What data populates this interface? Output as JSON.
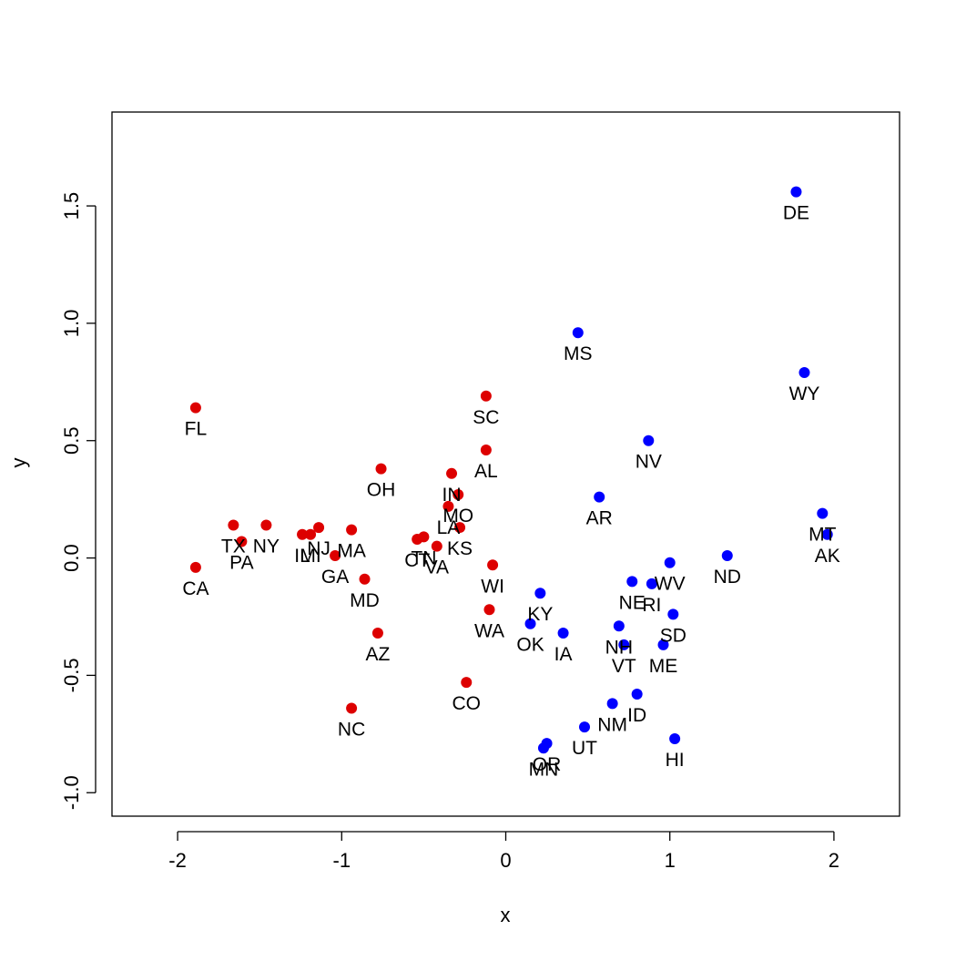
{
  "chart_data": {
    "type": "scatter",
    "title": "",
    "xlabel": "x",
    "ylabel": "y",
    "xlim": [
      -2.4,
      2.4
    ],
    "ylim": [
      -1.1,
      1.9
    ],
    "x_ticks": [
      -2,
      -1,
      0,
      1,
      2
    ],
    "x_tick_labels": [
      "-2",
      "-1",
      "0",
      "1",
      "2"
    ],
    "y_ticks": [
      -1.0,
      -0.5,
      0.0,
      0.5,
      1.0,
      1.5
    ],
    "y_tick_labels": [
      "-1.0",
      "-0.5",
      "0.0",
      "0.5",
      "1.0",
      "1.5"
    ],
    "grid": false,
    "legend": "none",
    "colors": {
      "red_group": "#dd0000",
      "blue_group": "#0000ff"
    },
    "points": [
      {
        "label": "FL",
        "x": -1.89,
        "y": 0.64,
        "group": "red"
      },
      {
        "label": "CA",
        "x": -1.89,
        "y": -0.04,
        "group": "red"
      },
      {
        "label": "TX",
        "x": -1.66,
        "y": 0.14,
        "group": "red"
      },
      {
        "label": "PA",
        "x": -1.61,
        "y": 0.07,
        "group": "red"
      },
      {
        "label": "NY",
        "x": -1.46,
        "y": 0.14,
        "group": "red"
      },
      {
        "label": "IL",
        "x": -1.24,
        "y": 0.1,
        "group": "red"
      },
      {
        "label": "MI",
        "x": -1.19,
        "y": 0.1,
        "group": "red"
      },
      {
        "label": "NJ",
        "x": -1.14,
        "y": 0.13,
        "group": "red"
      },
      {
        "label": "GA",
        "x": -1.04,
        "y": 0.01,
        "group": "red"
      },
      {
        "label": "MA",
        "x": -0.94,
        "y": 0.12,
        "group": "red"
      },
      {
        "label": "MD",
        "x": -0.86,
        "y": -0.09,
        "group": "red"
      },
      {
        "label": "OH",
        "x": -0.76,
        "y": 0.38,
        "group": "red"
      },
      {
        "label": "AZ",
        "x": -0.78,
        "y": -0.32,
        "group": "red"
      },
      {
        "label": "NC",
        "x": -0.94,
        "y": -0.64,
        "group": "red"
      },
      {
        "label": "CT",
        "x": -0.54,
        "y": 0.08,
        "group": "red"
      },
      {
        "label": "TN",
        "x": -0.5,
        "y": 0.09,
        "group": "red"
      },
      {
        "label": "VA",
        "x": -0.42,
        "y": 0.05,
        "group": "red"
      },
      {
        "label": "IN",
        "x": -0.33,
        "y": 0.36,
        "group": "red"
      },
      {
        "label": "LA",
        "x": -0.35,
        "y": 0.22,
        "group": "red"
      },
      {
        "label": "MO",
        "x": -0.29,
        "y": 0.27,
        "group": "red"
      },
      {
        "label": "KS",
        "x": -0.28,
        "y": 0.13,
        "group": "red"
      },
      {
        "label": "SC",
        "x": -0.12,
        "y": 0.69,
        "group": "red"
      },
      {
        "label": "AL",
        "x": -0.12,
        "y": 0.46,
        "group": "red"
      },
      {
        "label": "WI",
        "x": -0.08,
        "y": -0.03,
        "group": "red"
      },
      {
        "label": "WA",
        "x": -0.1,
        "y": -0.22,
        "group": "red"
      },
      {
        "label": "CO",
        "x": -0.24,
        "y": -0.53,
        "group": "red"
      },
      {
        "label": "KY",
        "x": 0.21,
        "y": -0.15,
        "group": "blue"
      },
      {
        "label": "OK",
        "x": 0.15,
        "y": -0.28,
        "group": "blue"
      },
      {
        "label": "IA",
        "x": 0.35,
        "y": -0.32,
        "group": "blue"
      },
      {
        "label": "MS",
        "x": 0.44,
        "y": 0.96,
        "group": "blue"
      },
      {
        "label": "AR",
        "x": 0.57,
        "y": 0.26,
        "group": "blue"
      },
      {
        "label": "NV",
        "x": 0.87,
        "y": 0.5,
        "group": "blue"
      },
      {
        "label": "OR",
        "x": 0.25,
        "y": -0.79,
        "group": "blue"
      },
      {
        "label": "MN",
        "x": 0.23,
        "y": -0.81,
        "group": "blue"
      },
      {
        "label": "UT",
        "x": 0.48,
        "y": -0.72,
        "group": "blue"
      },
      {
        "label": "NM",
        "x": 0.65,
        "y": -0.62,
        "group": "blue"
      },
      {
        "label": "ID",
        "x": 0.8,
        "y": -0.58,
        "group": "blue"
      },
      {
        "label": "NH",
        "x": 0.69,
        "y": -0.29,
        "group": "blue"
      },
      {
        "label": "VT",
        "x": 0.72,
        "y": -0.37,
        "group": "blue"
      },
      {
        "label": "NE",
        "x": 0.77,
        "y": -0.1,
        "group": "blue"
      },
      {
        "label": "RI",
        "x": 0.89,
        "y": -0.11,
        "group": "blue"
      },
      {
        "label": "ME",
        "x": 0.96,
        "y": -0.37,
        "group": "blue"
      },
      {
        "label": "WV",
        "x": 1.0,
        "y": -0.02,
        "group": "blue"
      },
      {
        "label": "SD",
        "x": 1.02,
        "y": -0.24,
        "group": "blue"
      },
      {
        "label": "HI",
        "x": 1.03,
        "y": -0.77,
        "group": "blue"
      },
      {
        "label": "ND",
        "x": 1.35,
        "y": 0.01,
        "group": "blue"
      },
      {
        "label": "DE",
        "x": 1.77,
        "y": 1.56,
        "group": "blue"
      },
      {
        "label": "WY",
        "x": 1.82,
        "y": 0.79,
        "group": "blue"
      },
      {
        "label": "MT",
        "x": 1.93,
        "y": 0.19,
        "group": "blue"
      },
      {
        "label": "AK",
        "x": 1.96,
        "y": 0.1,
        "group": "blue"
      }
    ]
  }
}
